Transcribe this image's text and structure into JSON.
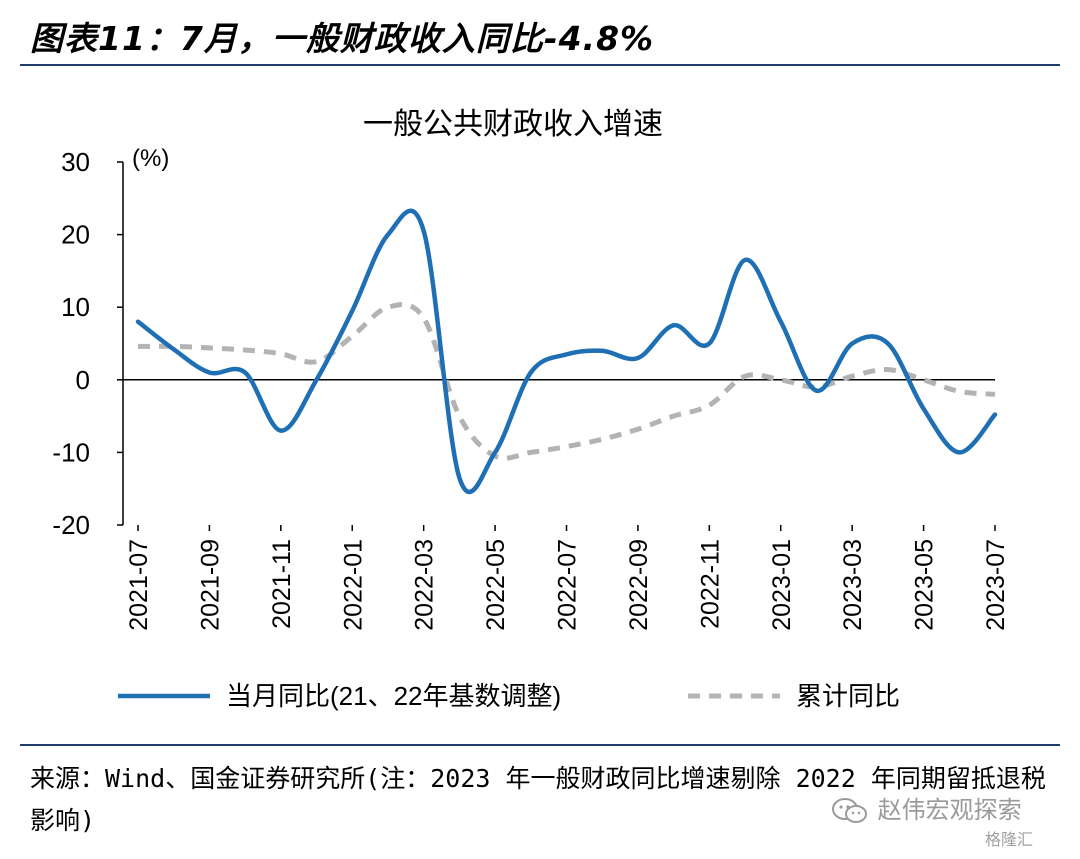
{
  "figure": {
    "title": "图表11：7月，一般财政收入同比-4.8%",
    "source": "来源：Wind、国金证券研究所(注：2023 年一般财政同比增速剔除 2022 年同期留抵退税影响)",
    "watermark": "赵伟宏观探索",
    "watermark_icon": "wechat-icon",
    "watermark2": "格隆汇"
  },
  "chart_data": {
    "type": "line",
    "title": "一般公共财政收入增速",
    "ylabel": "(%)",
    "xlabel": "",
    "ylim": [
      -20,
      30
    ],
    "yticks": [
      30,
      20,
      10,
      0,
      -10,
      -20
    ],
    "grid": false,
    "legend_position": "bottom",
    "categories": [
      "2021-07",
      "2021-08",
      "2021-09",
      "2021-10",
      "2021-11",
      "2021-12",
      "2022-01",
      "2022-02",
      "2022-03",
      "2022-04",
      "2022-05",
      "2022-06",
      "2022-07",
      "2022-08",
      "2022-09",
      "2022-10",
      "2022-11",
      "2022-12",
      "2023-01",
      "2023-02",
      "2023-03",
      "2023-04",
      "2023-05",
      "2023-06",
      "2023-07"
    ],
    "tick_labels": [
      "2021-07",
      "2021-09",
      "2021-11",
      "2022-01",
      "2022-03",
      "2022-05",
      "2022-07",
      "2022-09",
      "2022-11",
      "2023-01",
      "2023-03",
      "2023-05",
      "2023-07"
    ],
    "series": [
      {
        "name": "当月同比(21、22年基数调整)",
        "color": "#1f6fb5",
        "style": "solid",
        "values": [
          8.0,
          4.2,
          1.0,
          1.0,
          -7.0,
          0.0,
          9.5,
          20.0,
          20.5,
          -13.5,
          -10.0,
          1.0,
          3.5,
          4.0,
          3.0,
          7.5,
          5.0,
          16.5,
          8.0,
          -1.5,
          5.0,
          5.0,
          -4.0,
          -10.0,
          -4.8
        ]
      },
      {
        "name": "累计同比",
        "color": "#b3b3b3",
        "style": "dashed",
        "values": [
          4.6,
          4.6,
          4.4,
          4.1,
          3.6,
          2.5,
          6.0,
          10.0,
          8.5,
          -5.0,
          -10.5,
          -10.0,
          -9.2,
          -8.2,
          -6.8,
          -5.0,
          -3.5,
          0.5,
          0.0,
          -1.0,
          0.5,
          1.4,
          0.0,
          -1.6,
          -2.0
        ]
      }
    ]
  }
}
